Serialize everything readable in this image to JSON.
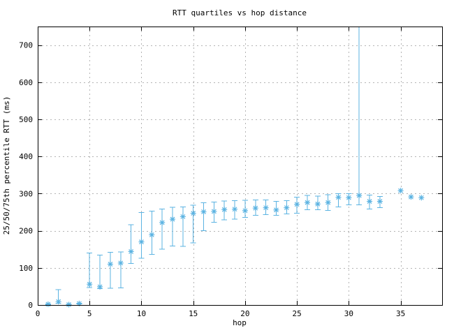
{
  "window": {
    "title": "RTT quartiles vs hop distance"
  },
  "chart_data": {
    "type": "scatter",
    "subtype": "yerrorbars (25th/75th percentile whiskers around median, gnuplot style)",
    "title": "RTT quartiles vs hop distance",
    "xlabel": "hop",
    "ylabel": "25/50/75th percentile RTT (ms)",
    "xlim": [
      0,
      39
    ],
    "ylim": [
      0,
      750
    ],
    "xticks": [
      0,
      5,
      10,
      15,
      20,
      25,
      30,
      35
    ],
    "yticks": [
      0,
      100,
      200,
      300,
      400,
      500,
      600,
      700
    ],
    "grid": true,
    "legend_position": "none",
    "colors": {
      "series": "#5bb3e2",
      "grid": "#b4b4b4",
      "axis": "#000000",
      "background": "#ffffff"
    },
    "marker": "asterisk",
    "points": [
      {
        "hop": 1,
        "q25": 0,
        "median": 2,
        "q75": 3
      },
      {
        "hop": 2,
        "q25": 5,
        "median": 9,
        "q75": 41
      },
      {
        "hop": 3,
        "q25": 1,
        "median": 1,
        "q75": 2
      },
      {
        "hop": 4,
        "q25": 3,
        "median": 4,
        "q75": 5
      },
      {
        "hop": 5,
        "q25": 47,
        "median": 56,
        "q75": 140
      },
      {
        "hop": 6,
        "q25": 44,
        "median": 49,
        "q75": 134
      },
      {
        "hop": 7,
        "q25": 45,
        "median": 110,
        "q75": 142
      },
      {
        "hop": 8,
        "q25": 46,
        "median": 113,
        "q75": 143
      },
      {
        "hop": 9,
        "q25": 112,
        "median": 144,
        "q75": 216
      },
      {
        "hop": 10,
        "q25": 126,
        "median": 170,
        "q75": 249
      },
      {
        "hop": 11,
        "q25": 136,
        "median": 189,
        "q75": 253
      },
      {
        "hop": 12,
        "q25": 150,
        "median": 222,
        "q75": 258
      },
      {
        "hop": 13,
        "q25": 159,
        "median": 231,
        "q75": 263
      },
      {
        "hop": 14,
        "q25": 158,
        "median": 238,
        "q75": 264
      },
      {
        "hop": 15,
        "q25": 167,
        "median": 247,
        "q75": 269
      },
      {
        "hop": 16,
        "q25": 200,
        "median": 251,
        "q75": 275
      },
      {
        "hop": 17,
        "q25": 223,
        "median": 252,
        "q75": 277
      },
      {
        "hop": 18,
        "q25": 229,
        "median": 257,
        "q75": 280
      },
      {
        "hop": 19,
        "q25": 231,
        "median": 258,
        "q75": 281
      },
      {
        "hop": 20,
        "q25": 236,
        "median": 254,
        "q75": 282
      },
      {
        "hop": 21,
        "q25": 242,
        "median": 261,
        "q75": 283
      },
      {
        "hop": 22,
        "q25": 243,
        "median": 262,
        "q75": 283
      },
      {
        "hop": 23,
        "q25": 242,
        "median": 256,
        "q75": 279
      },
      {
        "hop": 24,
        "q25": 245,
        "median": 262,
        "q75": 281
      },
      {
        "hop": 25,
        "q25": 247,
        "median": 271,
        "q75": 290
      },
      {
        "hop": 26,
        "q25": 257,
        "median": 276,
        "q75": 295
      },
      {
        "hop": 27,
        "q25": 257,
        "median": 272,
        "q75": 293
      },
      {
        "hop": 28,
        "q25": 255,
        "median": 276,
        "q75": 297
      },
      {
        "hop": 29,
        "q25": 264,
        "median": 290,
        "q75": 300
      },
      {
        "hop": 30,
        "q25": 270,
        "median": 289,
        "q75": 300
      },
      {
        "hop": 31,
        "q25": 270,
        "median": 295,
        "q75": 900
      },
      {
        "hop": 32,
        "q25": 258,
        "median": 279,
        "q75": 296
      },
      {
        "hop": 33,
        "q25": 262,
        "median": 279,
        "q75": 292
      },
      {
        "hop": 35,
        "q25": 308,
        "median": 308,
        "q75": 308
      },
      {
        "hop": 36,
        "q25": 291,
        "median": 291,
        "q75": 291
      },
      {
        "hop": 37,
        "q25": 289,
        "median": 289,
        "q75": 289
      }
    ]
  }
}
